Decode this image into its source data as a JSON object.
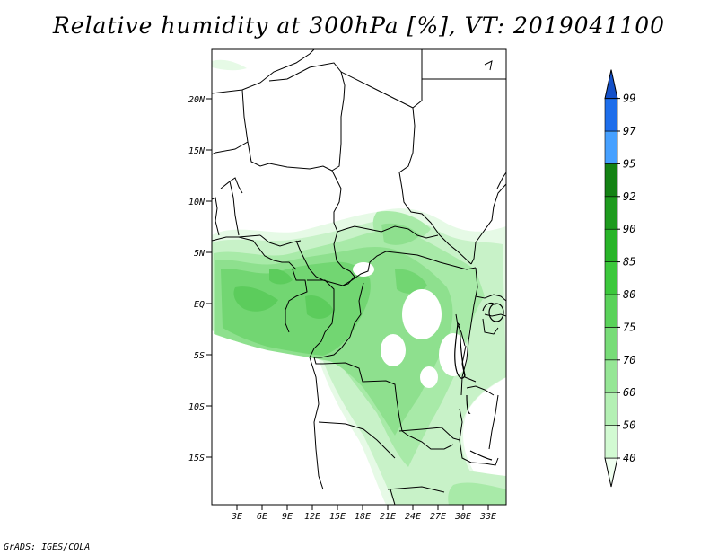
{
  "title": "Relative humidity at 300hPa [%], VT: 2019041100",
  "credit": "GrADS: IGES/COLA",
  "map": {
    "lat_labels": [
      "20N",
      "15N",
      "10N",
      "5N",
      "EQ",
      "5S",
      "10S",
      "15S"
    ],
    "lon_labels": [
      "3E",
      "6E",
      "9E",
      "12E",
      "15E",
      "18E",
      "21E",
      "24E",
      "27E",
      "30E",
      "33E"
    ]
  },
  "colorbar": {
    "levels": [
      "40",
      "50",
      "60",
      "70",
      "75",
      "80",
      "85",
      "90",
      "92",
      "95",
      "97",
      "99"
    ],
    "colors": [
      "#f0fff0",
      "#d2fad2",
      "#b4f0b4",
      "#96e696",
      "#78dc78",
      "#5ad25a",
      "#3cc83c",
      "#28b428",
      "#1e9b1e",
      "#148214",
      "#46a0ff",
      "#1e6eeb",
      "#1450c8"
    ]
  }
}
